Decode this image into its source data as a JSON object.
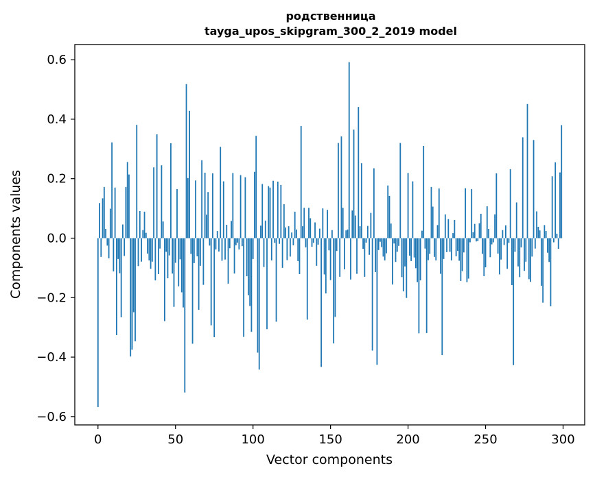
{
  "chart_data": {
    "type": "bar",
    "title_line1": "родственница",
    "title_line2": "tayga_upos_skipgram_300_2_2019 model",
    "xlabel": "Vector components",
    "ylabel": "Components values",
    "xlim": [
      -14.95,
      313.95
    ],
    "ylim": [
      -0.628,
      0.651
    ],
    "x_ticks": [
      0,
      50,
      100,
      150,
      200,
      250,
      300
    ],
    "y_ticks": [
      -0.6,
      -0.4,
      -0.2,
      0.0,
      0.2,
      0.4,
      0.6
    ],
    "x_tick_labels": [
      "0",
      "50",
      "100",
      "150",
      "200",
      "250",
      "300"
    ],
    "y_tick_labels": [
      "−0.6",
      "−0.4",
      "−0.2",
      "0.0",
      "0.2",
      "0.4",
      "0.6"
    ],
    "bar_color": "#1f77b4",
    "grid": false,
    "values": [
      -0.568,
      0.118,
      -0.063,
      0.134,
      0.172,
      0.031,
      -0.025,
      -0.068,
      0.099,
      0.322,
      -0.112,
      0.17,
      -0.326,
      -0.07,
      -0.118,
      -0.266,
      0.046,
      -0.06,
      0.172,
      0.256,
      0.214,
      -0.398,
      -0.375,
      -0.249,
      -0.347,
      0.381,
      -0.094,
      0.091,
      -0.079,
      0.027,
      0.089,
      0.018,
      -0.052,
      -0.075,
      -0.103,
      -0.079,
      0.238,
      -0.142,
      0.349,
      -0.121,
      -0.035,
      0.245,
      0.056,
      -0.279,
      -0.046,
      -0.135,
      -0.058,
      0.319,
      -0.119,
      -0.231,
      -0.083,
      0.165,
      -0.162,
      -0.071,
      -0.182,
      -0.233,
      -0.519,
      0.518,
      0.202,
      0.428,
      -0.053,
      -0.355,
      -0.084,
      0.194,
      -0.061,
      -0.241,
      -0.093,
      0.262,
      -0.157,
      0.22,
      0.079,
      0.155,
      -0.025,
      -0.293,
      0.218,
      -0.333,
      -0.038,
      0.024,
      -0.045,
      0.307,
      -0.076,
      0.191,
      -0.072,
      0.045,
      -0.153,
      -0.034,
      0.058,
      0.219,
      -0.119,
      -0.024,
      -0.015,
      -0.038,
      0.212,
      -0.027,
      -0.332,
      0.205,
      -0.128,
      -0.192,
      -0.228,
      -0.315,
      -0.07,
      0.223,
      0.344,
      -0.385,
      -0.442,
      0.042,
      0.182,
      -0.097,
      0.059,
      -0.306,
      0.175,
      0.17,
      -0.075,
      0.193,
      -0.016,
      -0.281,
      0.19,
      -0.019,
      0.179,
      -0.1,
      0.114,
      0.036,
      -0.074,
      0.04,
      -0.062,
      0.019,
      -0.024,
      0.089,
      0.029,
      -0.077,
      -0.121,
      0.377,
      0.04,
      0.102,
      -0.031,
      -0.274,
      0.102,
      0.067,
      -0.029,
      -0.016,
      0.053,
      -0.093,
      -0.022,
      0.032,
      -0.433,
      0.1,
      -0.122,
      -0.186,
      0.095,
      -0.041,
      -0.141,
      0.027,
      -0.354,
      -0.265,
      -0.043,
      0.32,
      -0.13,
      0.342,
      0.102,
      -0.105,
      0.026,
      0.029,
      0.592,
      -0.139,
      0.093,
      0.365,
      0.076,
      -0.12,
      0.441,
      0.04,
      0.252,
      -0.036,
      -0.13,
      -0.015,
      0.041,
      -0.056,
      0.085,
      -0.378,
      0.235,
      -0.114,
      -0.426,
      -0.04,
      -0.012,
      -0.03,
      -0.062,
      -0.075,
      -0.051,
      0.177,
      0.142,
      0.049,
      -0.156,
      -0.018,
      -0.08,
      -0.046,
      -0.026,
      0.32,
      -0.131,
      -0.179,
      -0.095,
      -0.201,
      0.219,
      -0.059,
      -0.077,
      0.191,
      -0.065,
      -0.101,
      -0.148,
      -0.32,
      -0.142,
      0.025,
      0.31,
      -0.035,
      -0.319,
      -0.074,
      -0.053,
      0.172,
      0.106,
      -0.063,
      -0.075,
      0.044,
      0.167,
      -0.12,
      -0.393,
      -0.07,
      0.08,
      -0.047,
      0.064,
      -0.046,
      -0.075,
      0.017,
      0.061,
      -0.061,
      -0.043,
      -0.076,
      -0.144,
      -0.111,
      -0.048,
      0.168,
      -0.148,
      -0.136,
      -0.014,
      0.165,
      0.02,
      0.048,
      -0.011,
      -0.01,
      0.05,
      0.082,
      -0.053,
      -0.128,
      -0.098,
      0.107,
      0.031,
      -0.064,
      -0.021,
      -0.014,
      0.08,
      0.218,
      -0.052,
      -0.122,
      -0.072,
      0.027,
      -0.023,
      0.043,
      -0.103,
      -0.016,
      0.232,
      -0.158,
      -0.427,
      -0.046,
      0.12,
      -0.095,
      -0.131,
      -0.031,
      0.339,
      -0.11,
      -0.079,
      0.451,
      -0.138,
      -0.147,
      -0.062,
      0.33,
      -0.035,
      0.09,
      0.038,
      0.026,
      -0.16,
      -0.217,
      0.044,
      0.024,
      -0.049,
      -0.08,
      -0.229,
      0.208,
      -0.014,
      0.255,
      0.015,
      -0.036,
      0.221,
      0.38
    ]
  }
}
